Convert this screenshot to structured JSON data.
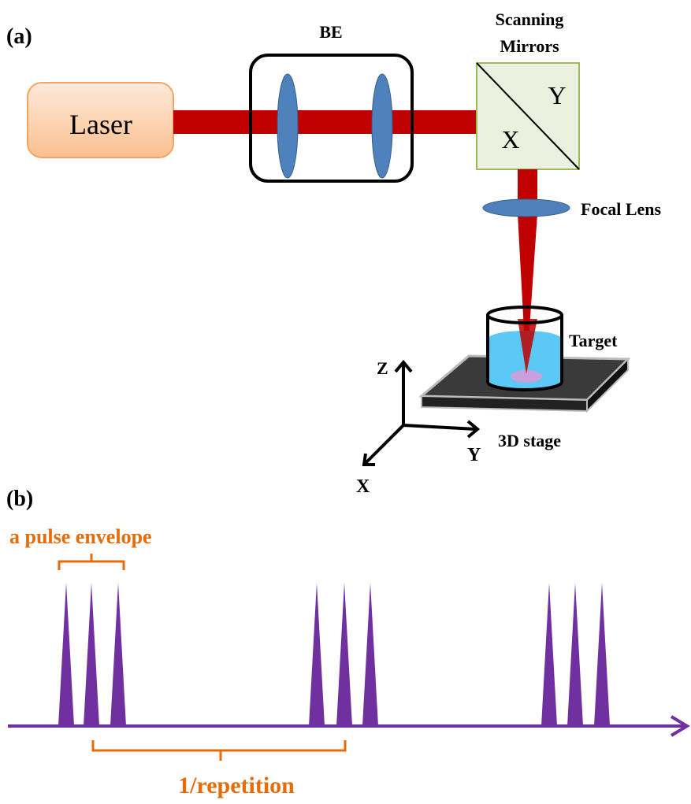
{
  "panel_a": {
    "label": "(a)",
    "beam_expander": "BE",
    "scanning_mirrors": {
      "title_lines": [
        "Scanning",
        "Mirrors"
      ],
      "x": "X",
      "y": "Y"
    },
    "laser": "Laser",
    "focal_lens": "Focal Lens",
    "target": "Target",
    "stage": "3D stage",
    "axes": {
      "z": "Z",
      "y": "Y",
      "x": "X"
    }
  },
  "panel_b": {
    "label": "(b)",
    "envelope": "a pulse envelope",
    "period": "1/repetition"
  }
}
